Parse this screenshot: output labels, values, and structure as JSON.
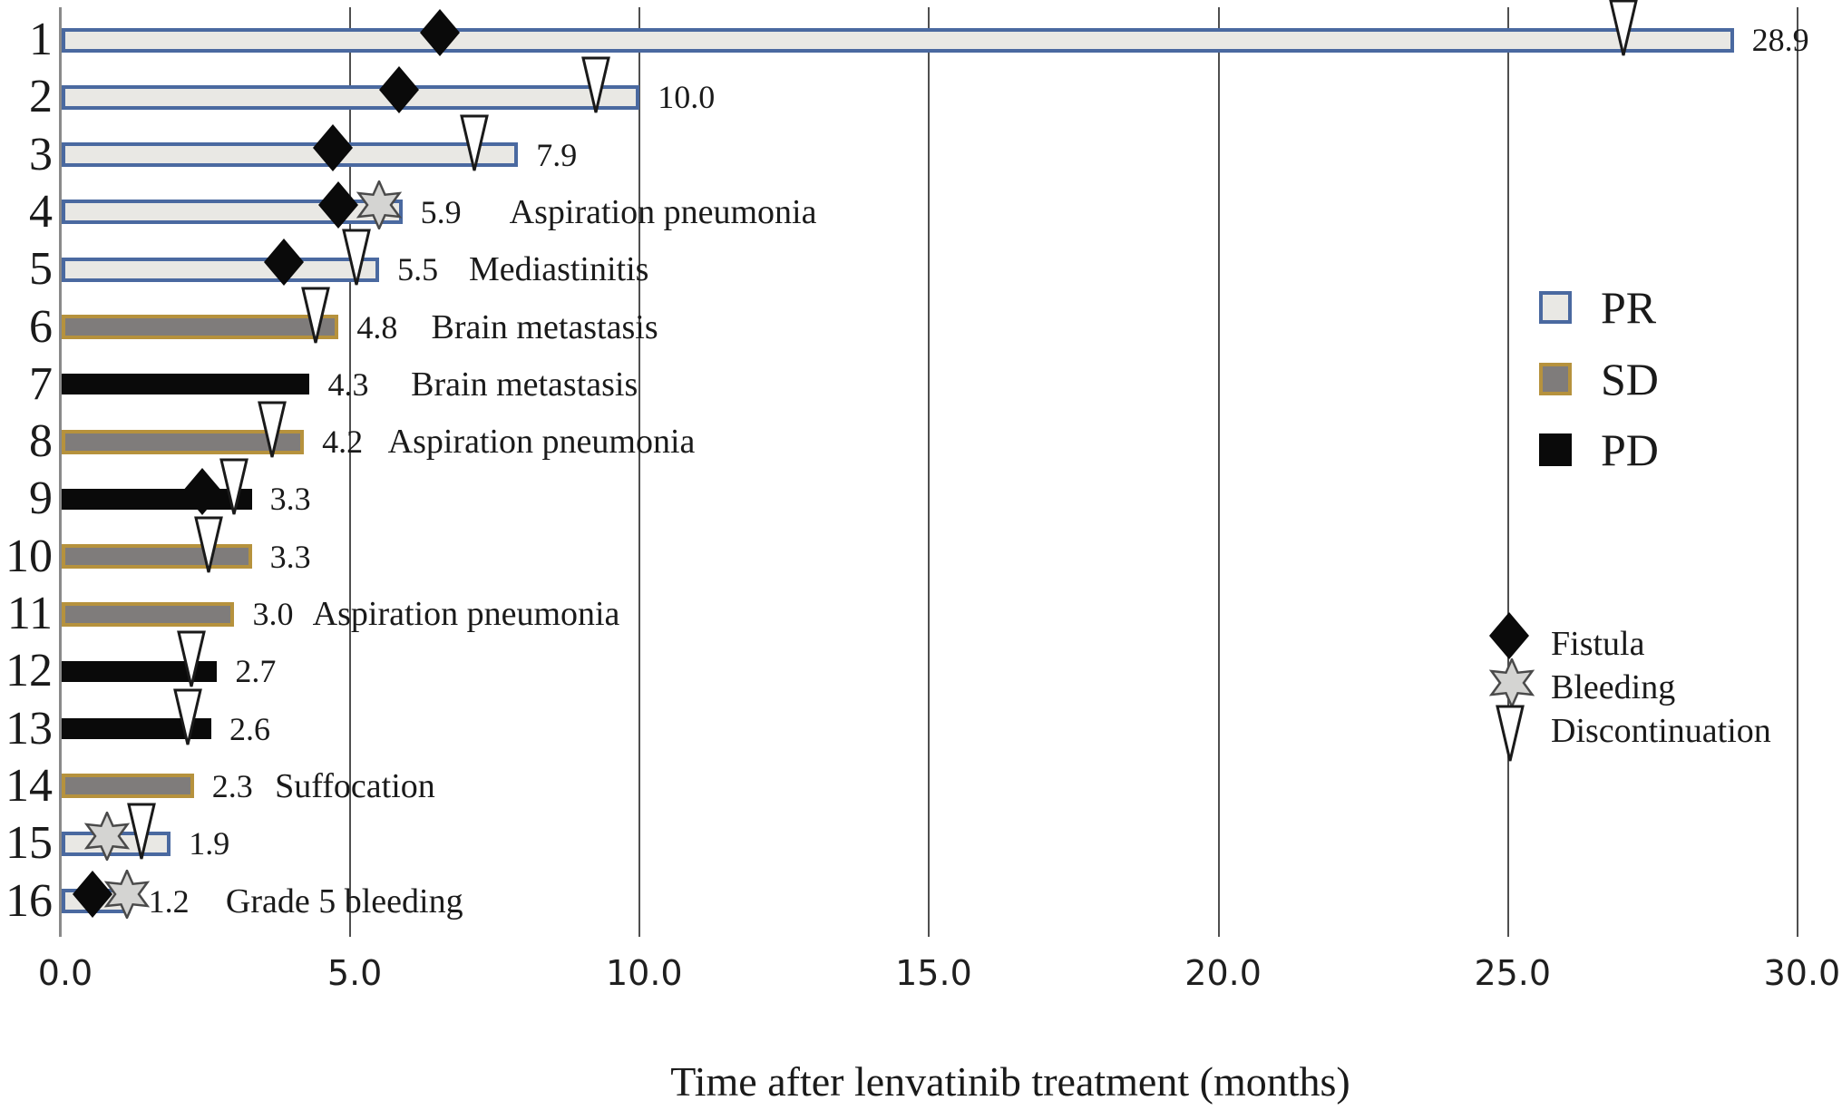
{
  "chart_data": {
    "type": "bar",
    "orientation": "horizontal",
    "title": "",
    "xlabel": "Time after lenvatinib treatment (months)",
    "ylabel": "",
    "xlim": [
      0,
      30
    ],
    "grid": "vertical-gridlines-at-ticks",
    "legend_position": "right",
    "x_ticks": [
      {
        "value": 0,
        "label": "0.0"
      },
      {
        "value": 5,
        "label": "5.0"
      },
      {
        "value": 10,
        "label": "10.0"
      },
      {
        "value": 15,
        "label": "15.0"
      },
      {
        "value": 20,
        "label": "20.0"
      },
      {
        "value": 25,
        "label": "25.0"
      },
      {
        "value": 30,
        "label": "30.0"
      }
    ],
    "rows": [
      {
        "id": "1",
        "response": "PR",
        "months": 28.9,
        "value_label": "28.9",
        "markers": {
          "fistula": 6.55,
          "discontinuation": 27.0
        }
      },
      {
        "id": "2",
        "response": "PR",
        "months": 10.0,
        "value_label": "10.0",
        "markers": {
          "fistula": 5.85,
          "discontinuation": 9.25
        }
      },
      {
        "id": "3",
        "response": "PR",
        "months": 7.9,
        "value_label": "7.9",
        "markers": {
          "fistula": 4.7,
          "discontinuation": 7.15
        }
      },
      {
        "id": "4",
        "response": "PR",
        "months": 5.9,
        "value_label": "5.9",
        "markers": {
          "fistula": 4.8,
          "bleeding": 5.5
        },
        "annotation": "Aspiration pneumonia",
        "annotation_x": 7.75
      },
      {
        "id": "5",
        "response": "PR",
        "months": 5.5,
        "value_label": "5.5",
        "markers": {
          "fistula": 3.85,
          "discontinuation": 5.1
        },
        "annotation": "Mediastinitis",
        "annotation_x": 7.05
      },
      {
        "id": "6",
        "response": "SD",
        "months": 4.8,
        "value_label": "4.8",
        "markers": {
          "discontinuation": 4.4
        },
        "annotation": "Brain metastasis",
        "annotation_x": 6.4
      },
      {
        "id": "7",
        "response": "PD",
        "months": 4.3,
        "value_label": "4.3",
        "markers": {},
        "annotation": "Brain metastasis",
        "annotation_x": 6.05
      },
      {
        "id": "8",
        "response": "SD",
        "months": 4.2,
        "value_label": "4.2",
        "markers": {
          "discontinuation": 3.65
        },
        "annotation": "Aspiration pneumonia",
        "annotation_x": 5.65
      },
      {
        "id": "9",
        "response": "PD",
        "months": 3.3,
        "value_label": "3.3",
        "markers": {
          "fistula": 2.45,
          "discontinuation": 3.0
        }
      },
      {
        "id": "10",
        "response": "SD",
        "months": 3.3,
        "value_label": "3.3",
        "markers": {
          "discontinuation": 2.55
        }
      },
      {
        "id": "11",
        "response": "SD",
        "months": 3.0,
        "value_label": "3.0",
        "markers": {},
        "annotation": "Aspiration pneumonia",
        "annotation_x": 4.35
      },
      {
        "id": "12",
        "response": "PD",
        "months": 2.7,
        "value_label": "2.7",
        "markers": {
          "discontinuation": 2.25
        }
      },
      {
        "id": "13",
        "response": "PD",
        "months": 2.6,
        "value_label": "2.6",
        "markers": {
          "discontinuation": 2.2
        }
      },
      {
        "id": "14",
        "response": "SD",
        "months": 2.3,
        "value_label": "2.3",
        "markers": {},
        "annotation": "Suffocation",
        "annotation_x": 3.7
      },
      {
        "id": "15",
        "response": "PR",
        "months": 1.9,
        "value_label": "1.9",
        "markers": {
          "bleeding": 0.8,
          "discontinuation": 1.4
        }
      },
      {
        "id": "16",
        "response": "PR",
        "months": 1.2,
        "value_label": "1.2",
        "markers": {
          "fistula": 0.55,
          "bleeding": 1.15
        },
        "annotation": "Grade 5 bleeding",
        "annotation_x": 2.85
      }
    ],
    "response_legend": [
      {
        "code": "PR",
        "fill": "#e9e8e4",
        "border": "#4a69a0"
      },
      {
        "code": "SD",
        "fill": "#7f7c7b",
        "border": "#b6923d"
      },
      {
        "code": "PD",
        "fill": "#0a0a0a",
        "border": "#0a0a0a"
      }
    ],
    "marker_legend": [
      {
        "marker": "fistula",
        "label": "Fistula"
      },
      {
        "marker": "bleeding",
        "label": "Bleeding"
      },
      {
        "marker": "discontinuation",
        "label": "Discontinuation"
      }
    ],
    "colors": {
      "gridline": "#4f4f4f",
      "axis": "#8a8a8a",
      "text": "#1a1a1a",
      "fistula": "#0a0a0a",
      "bleeding_fill": "#d4d4d2",
      "bleeding_stroke": "#4a4a4a",
      "discontinuation_fill": "#ffffff",
      "discontinuation_stroke": "#1a1a1a"
    }
  }
}
